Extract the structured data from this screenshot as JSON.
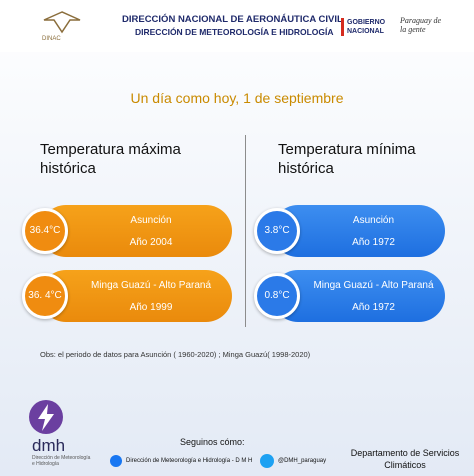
{
  "header": {
    "org_line1": "DIRECCIÓN NACIONAL DE AERONÁUTICA CIVIL",
    "org_line2": "DIRECCIÓN DE METEOROLOGÍA  E HIDROLOGÍA",
    "logo_text": "DINAC",
    "gov_text": "GOBIERNO NACIONAL",
    "slogan": "Paraguay de la gente"
  },
  "subtitle": "Un día como hoy, 1 de septiembre",
  "max": {
    "heading": "Temperatura máxima histórica",
    "records": [
      {
        "value": "36.4°C",
        "place": "Asunción",
        "year": "Año 2004"
      },
      {
        "value": "36. 4°C",
        "place": "Minga Guazú - Alto Paraná",
        "year": "Año 1999"
      }
    ]
  },
  "min": {
    "heading": "Temperatura mínima histórica",
    "records": [
      {
        "value": "3.8°C",
        "place": "Asunción",
        "year": "Año 1972"
      },
      {
        "value": "0.8°C",
        "place": "Minga Guazú - Alto Paraná",
        "year": "Año 1972"
      }
    ]
  },
  "note": "Obs: el periodo de datos para Asunción ( 1960-2020) ; Minga Guazú( 1998-2020)",
  "footer": {
    "brand": "dmh",
    "brand_sub": "Dirección de Meteorología e Hidrología",
    "follow": "Seguinos cómo:",
    "facebook": "Dirección de Meteorología e Hidrología - D M H",
    "twitter": "@DMH_paraguay",
    "department": "Departamento de Servicios Climáticos"
  }
}
